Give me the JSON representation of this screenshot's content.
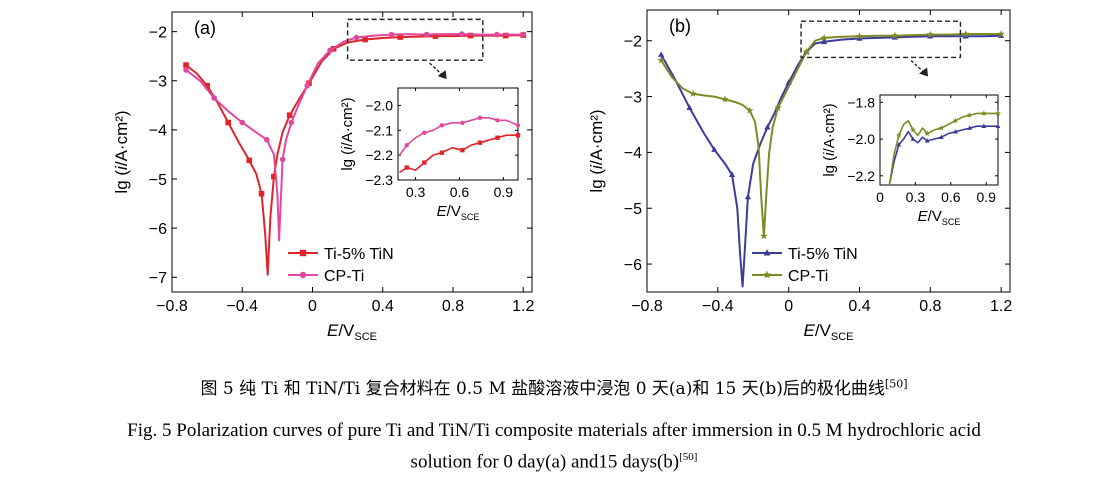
{
  "caption_cn": {
    "prefix": "图 5   纯 Ti 和 TiN/Ti 复合材料在 0.5 M 盐酸溶液中浸泡 0 天(a)和 15 天(b)后的极化曲线",
    "ref": "[50]"
  },
  "caption_en": {
    "line1": "Fig. 5    Polarization curves of pure Ti and TiN/Ti composite materials after immersion in 0.5 M hydrochloric acid",
    "line2": "solution for 0 day(a) and15 days(b)",
    "ref": "[50]"
  },
  "chart_data": [
    {
      "type": "line",
      "panel_label": "(a)",
      "xlabel_main": "E/V",
      "xlabel_sub": "SCE",
      "ylabel": "lg (i/A·cm²)",
      "xlim": [
        -0.8,
        1.25
      ],
      "ylim": [
        -7.3,
        -1.6
      ],
      "xticks": [
        "−0.8",
        "−0.4",
        "0",
        "0.4",
        "0.8",
        "1.2"
      ],
      "xtick_values": [
        -0.8,
        -0.4,
        0,
        0.4,
        0.8,
        1.2
      ],
      "yticks": [
        "−7",
        "−6",
        "−5",
        "−4",
        "−3",
        "−2"
      ],
      "ytick_values": [
        -7,
        -6,
        -5,
        -4,
        -3,
        -2
      ],
      "legend_position": "bottom-left",
      "series": [
        {
          "name": "Ti-5% TiN",
          "color": "#e0242c",
          "marker": "square",
          "x": [
            -0.72,
            -0.66,
            -0.6,
            -0.54,
            -0.48,
            -0.42,
            -0.36,
            -0.32,
            -0.29,
            -0.27,
            -0.255,
            -0.24,
            -0.22,
            -0.2,
            -0.17,
            -0.13,
            -0.08,
            -0.02,
            0.05,
            0.12,
            0.2,
            0.3,
            0.4,
            0.5,
            0.6,
            0.7,
            0.8,
            0.9,
            1.0,
            1.1,
            1.2
          ],
          "y": [
            -2.68,
            -2.85,
            -3.1,
            -3.45,
            -3.85,
            -4.25,
            -4.62,
            -4.9,
            -5.3,
            -6.1,
            -6.95,
            -5.8,
            -4.95,
            -4.5,
            -4.05,
            -3.7,
            -3.4,
            -3.05,
            -2.62,
            -2.35,
            -2.22,
            -2.16,
            -2.13,
            -2.11,
            -2.1,
            -2.09,
            -2.09,
            -2.08,
            -2.08,
            -2.08,
            -2.07
          ],
          "markers_x": [
            -0.72,
            -0.6,
            -0.48,
            -0.36,
            -0.29,
            -0.22,
            -0.13,
            -0.02,
            0.12,
            0.3,
            0.5,
            0.7,
            0.9,
            1.1,
            1.2
          ],
          "markers_y": [
            -2.68,
            -3.1,
            -3.85,
            -4.62,
            -5.3,
            -4.95,
            -3.7,
            -3.05,
            -2.35,
            -2.16,
            -2.11,
            -2.09,
            -2.08,
            -2.08,
            -2.07
          ]
        },
        {
          "name": "CP-Ti",
          "color": "#e2499e",
          "marker": "circle",
          "x": [
            -0.72,
            -0.64,
            -0.56,
            -0.48,
            -0.4,
            -0.32,
            -0.26,
            -0.22,
            -0.2,
            -0.19,
            -0.18,
            -0.17,
            -0.15,
            -0.12,
            -0.08,
            -0.03,
            0.03,
            0.1,
            0.18,
            0.25,
            0.35,
            0.45,
            0.55,
            0.65,
            0.75,
            0.85,
            0.95,
            1.05,
            1.15,
            1.2
          ],
          "y": [
            -2.78,
            -3.0,
            -3.35,
            -3.62,
            -3.85,
            -4.05,
            -4.2,
            -4.5,
            -5.3,
            -6.25,
            -5.4,
            -4.6,
            -4.2,
            -3.85,
            -3.5,
            -3.1,
            -2.65,
            -2.38,
            -2.2,
            -2.12,
            -2.08,
            -2.06,
            -2.05,
            -2.06,
            -2.05,
            -2.05,
            -2.06,
            -2.06,
            -2.06,
            -2.06
          ],
          "markers_x": [
            -0.72,
            -0.56,
            -0.4,
            -0.26,
            -0.17,
            -0.12,
            -0.03,
            0.1,
            0.25,
            0.45,
            0.65,
            0.85,
            1.05,
            1.2
          ],
          "markers_y": [
            -2.78,
            -3.35,
            -3.85,
            -4.2,
            -4.6,
            -3.85,
            -3.1,
            -2.38,
            -2.12,
            -2.06,
            -2.06,
            -2.05,
            -2.06,
            -2.06
          ]
        }
      ],
      "inset": {
        "xlabel_main": "E/V",
        "xlabel_sub": "SCE",
        "ylabel": "lg (i/A·cm²)",
        "xlim": [
          0.18,
          1.0
        ],
        "ylim": [
          -2.3,
          -1.93
        ],
        "xticks": [
          "0.3",
          "0.6",
          "0.9"
        ],
        "xtick_values": [
          0.3,
          0.6,
          0.9
        ],
        "yticks": [
          "−2.3",
          "−2.2",
          "−2.1",
          "−2.0"
        ],
        "ytick_values": [
          -2.3,
          -2.2,
          -2.1,
          -2.0
        ],
        "series": [
          {
            "name": "Ti-5% TiN",
            "color": "#e0242c",
            "x": [
              0.19,
              0.24,
              0.3,
              0.36,
              0.42,
              0.48,
              0.55,
              0.62,
              0.68,
              0.74,
              0.8,
              0.86,
              0.92,
              1.0
            ],
            "y": [
              -2.27,
              -2.25,
              -2.26,
              -2.23,
              -2.2,
              -2.19,
              -2.17,
              -2.18,
              -2.16,
              -2.15,
              -2.14,
              -2.13,
              -2.12,
              -2.12
            ],
            "markers_x": [
              0.24,
              0.36,
              0.48,
              0.62,
              0.74,
              0.86,
              1.0
            ],
            "markers_y": [
              -2.25,
              -2.23,
              -2.19,
              -2.18,
              -2.15,
              -2.13,
              -2.12
            ]
          },
          {
            "name": "CP-Ti",
            "color": "#e2499e",
            "x": [
              0.19,
              0.24,
              0.3,
              0.36,
              0.42,
              0.48,
              0.55,
              0.62,
              0.68,
              0.74,
              0.8,
              0.86,
              0.92,
              1.0
            ],
            "y": [
              -2.2,
              -2.16,
              -2.13,
              -2.11,
              -2.1,
              -2.08,
              -2.07,
              -2.07,
              -2.06,
              -2.05,
              -2.05,
              -2.06,
              -2.06,
              -2.08
            ],
            "markers_x": [
              0.24,
              0.36,
              0.48,
              0.62,
              0.74,
              0.86,
              1.0
            ],
            "markers_y": [
              -2.16,
              -2.11,
              -2.08,
              -2.07,
              -2.05,
              -2.06,
              -2.08
            ]
          }
        ]
      }
    },
    {
      "type": "line",
      "panel_label": "(b)",
      "xlabel_main": "E/V",
      "xlabel_sub": "SCE",
      "ylabel": "lg (i/A·cm²)",
      "xlim": [
        -0.8,
        1.25
      ],
      "ylim": [
        -6.5,
        -1.45
      ],
      "xticks": [
        "−0.8",
        "−0.4",
        "0",
        "0.4",
        "0.8",
        "1.2"
      ],
      "xtick_values": [
        -0.8,
        -0.4,
        0,
        0.4,
        0.8,
        1.2
      ],
      "yticks": [
        "−6",
        "−5",
        "−4",
        "−3",
        "−2"
      ],
      "ytick_values": [
        -6,
        -5,
        -4,
        -3,
        -2
      ],
      "legend_position": "bottom-left",
      "series": [
        {
          "name": "Ti-5% TiN",
          "color": "#3c3c9a",
          "marker": "triangle",
          "x": [
            -0.72,
            -0.64,
            -0.56,
            -0.48,
            -0.42,
            -0.36,
            -0.32,
            -0.29,
            -0.275,
            -0.26,
            -0.245,
            -0.23,
            -0.2,
            -0.16,
            -0.12,
            -0.08,
            -0.04,
            0.0,
            0.05,
            0.1,
            0.15,
            0.2,
            0.3,
            0.4,
            0.5,
            0.6,
            0.7,
            0.8,
            0.9,
            1.0,
            1.1,
            1.2
          ],
          "y": [
            -2.25,
            -2.7,
            -3.2,
            -3.65,
            -3.95,
            -4.2,
            -4.4,
            -5.0,
            -5.8,
            -6.4,
            -5.6,
            -4.8,
            -4.2,
            -3.85,
            -3.55,
            -3.3,
            -3.0,
            -2.75,
            -2.45,
            -2.2,
            -2.05,
            -2.02,
            -1.98,
            -1.96,
            -1.95,
            -1.94,
            -1.93,
            -1.92,
            -1.92,
            -1.92,
            -1.92,
            -1.91
          ],
          "markers_x": [
            -0.72,
            -0.56,
            -0.42,
            -0.32,
            -0.23,
            -0.12,
            0.0,
            0.1,
            0.2,
            0.4,
            0.6,
            0.8,
            1.0,
            1.2
          ],
          "markers_y": [
            -2.25,
            -3.2,
            -3.95,
            -4.4,
            -4.8,
            -3.55,
            -2.75,
            -2.2,
            -2.02,
            -1.96,
            -1.94,
            -1.92,
            -1.92,
            -1.91
          ]
        },
        {
          "name": "CP-Ti",
          "color": "#7f8a24",
          "marker": "star",
          "x": [
            -0.72,
            -0.66,
            -0.6,
            -0.54,
            -0.48,
            -0.42,
            -0.36,
            -0.3,
            -0.26,
            -0.22,
            -0.19,
            -0.17,
            -0.155,
            -0.14,
            -0.125,
            -0.11,
            -0.09,
            -0.06,
            -0.02,
            0.02,
            0.06,
            0.1,
            0.15,
            0.2,
            0.3,
            0.4,
            0.5,
            0.6,
            0.7,
            0.8,
            0.9,
            1.0,
            1.1,
            1.2
          ],
          "y": [
            -2.35,
            -2.65,
            -2.85,
            -2.95,
            -2.98,
            -3.0,
            -3.05,
            -3.1,
            -3.15,
            -3.25,
            -3.45,
            -3.9,
            -4.8,
            -5.5,
            -4.7,
            -4.0,
            -3.55,
            -3.2,
            -2.95,
            -2.7,
            -2.45,
            -2.2,
            -2.0,
            -1.95,
            -1.93,
            -1.92,
            -1.91,
            -1.91,
            -1.9,
            -1.89,
            -1.89,
            -1.88,
            -1.88,
            -1.88
          ],
          "markers_x": [
            -0.72,
            -0.54,
            -0.36,
            -0.22,
            -0.14,
            -0.06,
            0.1,
            0.2,
            0.4,
            0.6,
            0.8,
            1.0,
            1.2
          ],
          "markers_y": [
            -2.35,
            -2.95,
            -3.05,
            -3.25,
            -5.5,
            -3.2,
            -2.2,
            -1.95,
            -1.92,
            -1.91,
            -1.89,
            -1.88,
            -1.88
          ]
        }
      ],
      "inset": {
        "xlabel_main": "E/V",
        "xlabel_sub": "SCE",
        "ylabel": "lg (i/A·cm²)",
        "xlim": [
          0.0,
          1.0
        ],
        "ylim": [
          -2.25,
          -1.76
        ],
        "xticks": [
          "0",
          "0.3",
          "0.6",
          "0.9"
        ],
        "xtick_values": [
          0,
          0.3,
          0.6,
          0.9
        ],
        "yticks": [
          "−2.2",
          "−2.0",
          "−1.8"
        ],
        "ytick_values": [
          -2.2,
          -2.0,
          -1.8
        ],
        "series": [
          {
            "name": "Ti-5% TiN",
            "color": "#3c3c9a",
            "x": [
              0.08,
              0.12,
              0.16,
              0.2,
              0.24,
              0.28,
              0.32,
              0.36,
              0.4,
              0.46,
              0.52,
              0.58,
              0.64,
              0.7,
              0.76,
              0.82,
              0.88,
              0.94,
              1.0
            ],
            "y": [
              -2.25,
              -2.12,
              -2.03,
              -2.0,
              -1.96,
              -2.0,
              -2.02,
              -1.99,
              -2.01,
              -2.0,
              -1.99,
              -1.97,
              -1.96,
              -1.95,
              -1.94,
              -1.93,
              -1.93,
              -1.93,
              -1.93
            ],
            "markers_x": [
              0.16,
              0.28,
              0.4,
              0.52,
              0.64,
              0.76,
              0.88,
              1.0
            ],
            "markers_y": [
              -2.03,
              -2.0,
              -2.01,
              -1.99,
              -1.96,
              -1.94,
              -1.93,
              -1.93
            ]
          },
          {
            "name": "CP-Ti",
            "color": "#7f8a24",
            "x": [
              0.08,
              0.12,
              0.16,
              0.2,
              0.24,
              0.28,
              0.32,
              0.36,
              0.4,
              0.46,
              0.52,
              0.58,
              0.64,
              0.7,
              0.76,
              0.82,
              0.88,
              0.94,
              1.0
            ],
            "y": [
              -2.25,
              -2.08,
              -1.98,
              -1.92,
              -1.9,
              -1.95,
              -1.98,
              -1.94,
              -1.97,
              -1.95,
              -1.94,
              -1.92,
              -1.9,
              -1.88,
              -1.87,
              -1.86,
              -1.86,
              -1.86,
              -1.86
            ],
            "markers_x": [
              0.16,
              0.28,
              0.4,
              0.52,
              0.64,
              0.76,
              0.88,
              1.0
            ],
            "markers_y": [
              -1.98,
              -1.95,
              -1.97,
              -1.94,
              -1.9,
              -1.87,
              -1.86,
              -1.86
            ]
          }
        ]
      }
    }
  ]
}
